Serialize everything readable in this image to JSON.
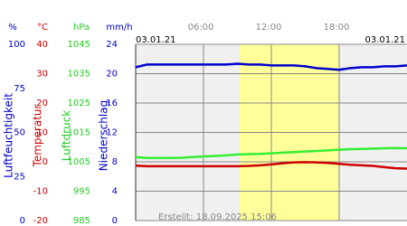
{
  "chart_data": {
    "type": "line",
    "date_left": "03.01.21",
    "date_right": "03.01.21",
    "footer": "Erstellt: 18.09.2025 15:06",
    "x": [
      0,
      1,
      2,
      3,
      4,
      5,
      6,
      7,
      8,
      9,
      10,
      11,
      12,
      13,
      14,
      15,
      16,
      17,
      18,
      19,
      20,
      21,
      22,
      23,
      24
    ],
    "xlim": [
      0,
      24
    ],
    "xticks": [
      {
        "value": 6,
        "label": "06:00"
      },
      {
        "value": 12,
        "label": "12:00"
      },
      {
        "value": 18,
        "label": "18:00"
      }
    ],
    "highlight": [
      9.2,
      18
    ],
    "grid": true,
    "axes": [
      {
        "title": "Luftfeuchtigkeit",
        "unit": "%",
        "color": "#0000cc",
        "ylim": [
          0,
          100
        ],
        "yticks": [
          100,
          75,
          50,
          25,
          0
        ]
      },
      {
        "title": "Temperatur",
        "unit": "°C",
        "color": "#cc0000",
        "ylim": [
          -20,
          40
        ],
        "yticks": [
          40,
          30,
          20,
          10,
          0,
          -10,
          -20
        ]
      },
      {
        "title": "Luftdruck",
        "unit": "hPa",
        "color": "#22cc22",
        "ylim": [
          985,
          1045
        ],
        "yticks": [
          1045,
          1035,
          1025,
          1015,
          1005,
          995,
          985
        ]
      },
      {
        "title": "Niederschlag",
        "unit": "mm/h",
        "color": "#0000cc",
        "ylim": [
          0,
          24
        ],
        "yticks": [
          24,
          20,
          16,
          12,
          8,
          4,
          0
        ]
      }
    ],
    "series": [
      {
        "color": "#0000cc",
        "axis": 0,
        "values": [
          87,
          88.5,
          88.5,
          88.5,
          88.5,
          88.5,
          88.5,
          88.5,
          88.5,
          89,
          88.5,
          88.5,
          88,
          88,
          88,
          87.5,
          86.5,
          86,
          85.5,
          86.5,
          87,
          87,
          87.5,
          87.5,
          88
        ]
      },
      {
        "color": "#33ee33",
        "axis": 2,
        "values": [
          1006.6,
          1006.3,
          1006.3,
          1006.3,
          1006.4,
          1006.6,
          1006.8,
          1007,
          1007.2,
          1007.5,
          1007.6,
          1007.7,
          1007.9,
          1008.1,
          1008.3,
          1008.5,
          1008.7,
          1008.9,
          1009.1,
          1009.3,
          1009.4,
          1009.5,
          1009.6,
          1009.7,
          1009.6
        ]
      },
      {
        "color": "#cc0000",
        "axis": 1,
        "values": [
          -1.3,
          -1.5,
          -1.5,
          -1.5,
          -1.5,
          -1.5,
          -1.5,
          -1.5,
          -1.5,
          -1.5,
          -1.4,
          -1.2,
          -0.9,
          -0.5,
          -0.2,
          -0.1,
          -0.2,
          -0.4,
          -0.7,
          -1.0,
          -1.2,
          -1.4,
          -1.8,
          -2.2,
          -2.3
        ]
      }
    ]
  }
}
